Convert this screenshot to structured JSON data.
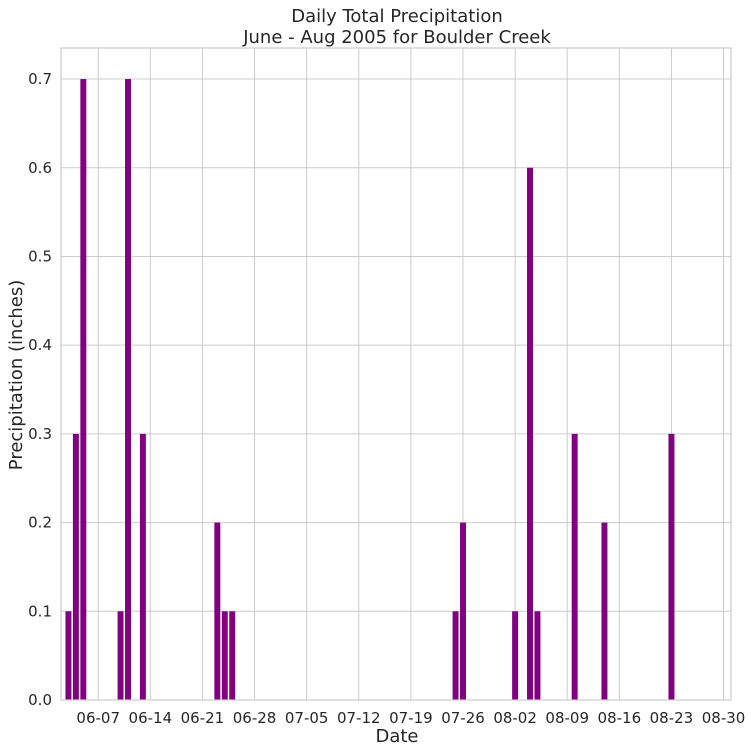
{
  "chart_data": {
    "type": "bar",
    "title_line1": "Daily Total Precipitation",
    "title_line2": "June - Aug 2005 for Boulder Creek",
    "xlabel": "Date",
    "ylabel": "Precipitation (inches)",
    "x_start": "2005-06-02",
    "x_end": "2005-08-31",
    "ylim": [
      0,
      0.735
    ],
    "x_tick_dates": [
      "2005-06-07",
      "2005-06-14",
      "2005-06-21",
      "2005-06-28",
      "2005-07-05",
      "2005-07-12",
      "2005-07-19",
      "2005-07-26",
      "2005-08-02",
      "2005-08-09",
      "2005-08-16",
      "2005-08-23",
      "2005-08-30"
    ],
    "x_tick_labels": [
      "06-07",
      "06-14",
      "06-21",
      "06-28",
      "07-05",
      "07-12",
      "07-19",
      "07-26",
      "08-02",
      "08-09",
      "08-16",
      "08-23",
      "08-30"
    ],
    "y_ticks": [
      0.0,
      0.1,
      0.2,
      0.3,
      0.4,
      0.5,
      0.6,
      0.7
    ],
    "y_tick_labels": [
      "0.0",
      "0.1",
      "0.2",
      "0.3",
      "0.4",
      "0.5",
      "0.6",
      "0.7"
    ],
    "grid": true,
    "bar_color": "#800080",
    "points": [
      {
        "date": "2005-06-03",
        "value": 0.1
      },
      {
        "date": "2005-06-04",
        "value": 0.3
      },
      {
        "date": "2005-06-05",
        "value": 0.7
      },
      {
        "date": "2005-06-10",
        "value": 0.1
      },
      {
        "date": "2005-06-11",
        "value": 0.7
      },
      {
        "date": "2005-06-13",
        "value": 0.3
      },
      {
        "date": "2005-06-23",
        "value": 0.2
      },
      {
        "date": "2005-06-24",
        "value": 0.1
      },
      {
        "date": "2005-06-25",
        "value": 0.1
      },
      {
        "date": "2005-07-25",
        "value": 0.1
      },
      {
        "date": "2005-07-26",
        "value": 0.2
      },
      {
        "date": "2005-08-02",
        "value": 0.1
      },
      {
        "date": "2005-08-04",
        "value": 0.6
      },
      {
        "date": "2005-08-05",
        "value": 0.1
      },
      {
        "date": "2005-08-10",
        "value": 0.3
      },
      {
        "date": "2005-08-14",
        "value": 0.2
      },
      {
        "date": "2005-08-23",
        "value": 0.3
      }
    ]
  }
}
